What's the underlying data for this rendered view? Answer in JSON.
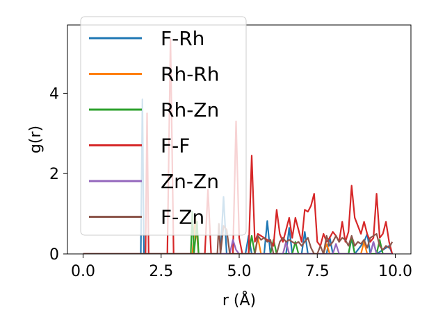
{
  "chart_data": {
    "type": "line",
    "title": "",
    "xlabel": "r (Å)",
    "ylabel": "g(r)",
    "xlim": [
      -0.5,
      10.5
    ],
    "ylim": [
      0,
      5.7
    ],
    "xticks": [
      0.0,
      2.5,
      5.0,
      7.5,
      10.0
    ],
    "xtick_labels": [
      "0.0",
      "2.5",
      "5.0",
      "7.5",
      "10.0"
    ],
    "yticks": [
      0,
      2,
      4
    ],
    "ytick_labels": [
      "0",
      "2",
      "4"
    ],
    "grid": false,
    "legend_position": "upper-left",
    "series": [
      {
        "name": "F-Rh",
        "color": "#1f77b4",
        "x": [
          0,
          1.85,
          1.9,
          1.95,
          2.0,
          4.4,
          4.5,
          4.6,
          5.2,
          5.3,
          5.4,
          5.8,
          5.9,
          6.0,
          6.5,
          6.6,
          6.7,
          7.0,
          7.1,
          7.2,
          7.8,
          7.9,
          8.0,
          8.5,
          8.6,
          8.7,
          9.0,
          9.1,
          9.2,
          9.3,
          9.4,
          9.8,
          9.9
        ],
        "y": [
          0,
          0,
          3.85,
          0,
          0,
          0,
          1.42,
          0,
          0,
          0.45,
          0,
          0,
          0.82,
          0,
          0,
          0.65,
          0,
          0,
          0.55,
          0,
          0,
          0.42,
          0,
          0,
          0.38,
          0,
          0.3,
          0.5,
          0,
          0.3,
          0,
          0.2,
          0
        ]
      },
      {
        "name": "Rh-Rh",
        "color": "#ff7f0e",
        "x": [
          0,
          3.5,
          3.6,
          3.7,
          5.5,
          5.6,
          5.7,
          6.4,
          6.5,
          6.6,
          7.7,
          7.8,
          7.9,
          8.9,
          9.0,
          9.1,
          9.9
        ],
        "y": [
          0,
          0,
          0.9,
          0,
          0,
          0.4,
          0,
          0,
          0.3,
          0,
          0,
          0.25,
          0,
          0,
          0.3,
          0,
          0
        ]
      },
      {
        "name": "Rh-Zn",
        "color": "#2ca02c",
        "x": [
          0,
          3.45,
          3.5,
          3.55,
          3.65,
          3.7,
          5.3,
          5.4,
          5.5,
          6.0,
          6.1,
          6.2,
          6.7,
          6.8,
          6.9,
          8.5,
          8.6,
          8.7,
          9.4,
          9.5,
          9.6,
          9.9
        ],
        "y": [
          0,
          0,
          1.05,
          0,
          0.8,
          0,
          0,
          0.45,
          0,
          0,
          0.35,
          0,
          0,
          0.3,
          0,
          0,
          0.42,
          0,
          0,
          0.35,
          0,
          0
        ]
      },
      {
        "name": "F-F",
        "color": "#d62728",
        "x": [
          0,
          2.0,
          2.05,
          2.1,
          2.7,
          2.8,
          2.9,
          3.9,
          4.0,
          4.1,
          4.8,
          4.9,
          5.0,
          5.1,
          5.2,
          5.3,
          5.4,
          5.5,
          5.6,
          5.7,
          5.8,
          5.9,
          6.0,
          6.1,
          6.2,
          6.3,
          6.4,
          6.5,
          6.6,
          6.7,
          6.8,
          6.9,
          7.0,
          7.1,
          7.2,
          7.3,
          7.4,
          7.5,
          7.6,
          7.7,
          7.8,
          7.9,
          8.0,
          8.1,
          8.2,
          8.3,
          8.4,
          8.5,
          8.6,
          8.7,
          8.8,
          8.9,
          9.0,
          9.1,
          9.2,
          9.3,
          9.4,
          9.5,
          9.6,
          9.7,
          9.8,
          9.9
        ],
        "y": [
          0,
          0,
          3.5,
          0,
          0,
          5.35,
          0,
          0,
          1.6,
          0,
          0,
          3.3,
          0.4,
          0,
          0,
          0,
          2.45,
          0.3,
          0.5,
          0.45,
          0.4,
          0.35,
          0.3,
          0.2,
          1.1,
          0.5,
          0.3,
          0.6,
          0.9,
          0.4,
          0.9,
          0.6,
          0.3,
          1.1,
          1.05,
          1.2,
          1.5,
          0.3,
          0.2,
          0.5,
          0.3,
          0.4,
          0.55,
          0.45,
          0.3,
          0.8,
          0.3,
          0.55,
          1.7,
          0.9,
          0.7,
          0.5,
          0.8,
          0.5,
          0.3,
          0.4,
          1.5,
          0.4,
          0.5,
          0.8,
          0.3,
          0
        ]
      },
      {
        "name": "Zn-Zn",
        "color": "#9467bd",
        "x": [
          0,
          4.7,
          4.8,
          4.9,
          5.0,
          6.4,
          6.5,
          6.6,
          8.0,
          8.1,
          8.2,
          9.2,
          9.3,
          9.4,
          9.9
        ],
        "y": [
          0,
          0,
          0.35,
          0.1,
          0,
          0,
          0.3,
          0,
          0,
          0.25,
          0,
          0,
          0.3,
          0,
          0
        ]
      },
      {
        "name": "F-Zn",
        "color": "#8c564b",
        "x": [
          0,
          4.3,
          4.35,
          4.4,
          4.5,
          4.6,
          4.7,
          5.5,
          5.6,
          5.7,
          5.8,
          5.9,
          6.0,
          6.1,
          6.2,
          6.3,
          6.4,
          6.5,
          6.6,
          6.7,
          6.8,
          6.9,
          7.0,
          7.1,
          7.2,
          7.3,
          7.4,
          7.5,
          7.6,
          7.7,
          7.8,
          7.9,
          8.0,
          8.1,
          8.2,
          8.3,
          8.4,
          8.5,
          8.6,
          8.7,
          8.8,
          8.9,
          9.0,
          9.1,
          9.2,
          9.3,
          9.4,
          9.5,
          9.6,
          9.7,
          9.8,
          9.9
        ],
        "y": [
          0,
          0,
          0.75,
          0,
          0.7,
          0.6,
          0,
          0,
          0.45,
          0.35,
          0.4,
          0.3,
          0.35,
          0,
          0,
          0.3,
          0.4,
          0.3,
          0.35,
          0.3,
          0.25,
          0.3,
          0.2,
          0.3,
          0.4,
          0.15,
          0,
          0,
          0.2,
          0,
          0.45,
          0.2,
          0.3,
          0.45,
          0.3,
          0.4,
          0.35,
          0.2,
          0.45,
          0.2,
          0.3,
          0.25,
          0.35,
          0.15,
          0.4,
          0.45,
          0.5,
          0.2,
          0.1,
          0.2,
          0.15,
          0.3
        ]
      }
    ]
  }
}
